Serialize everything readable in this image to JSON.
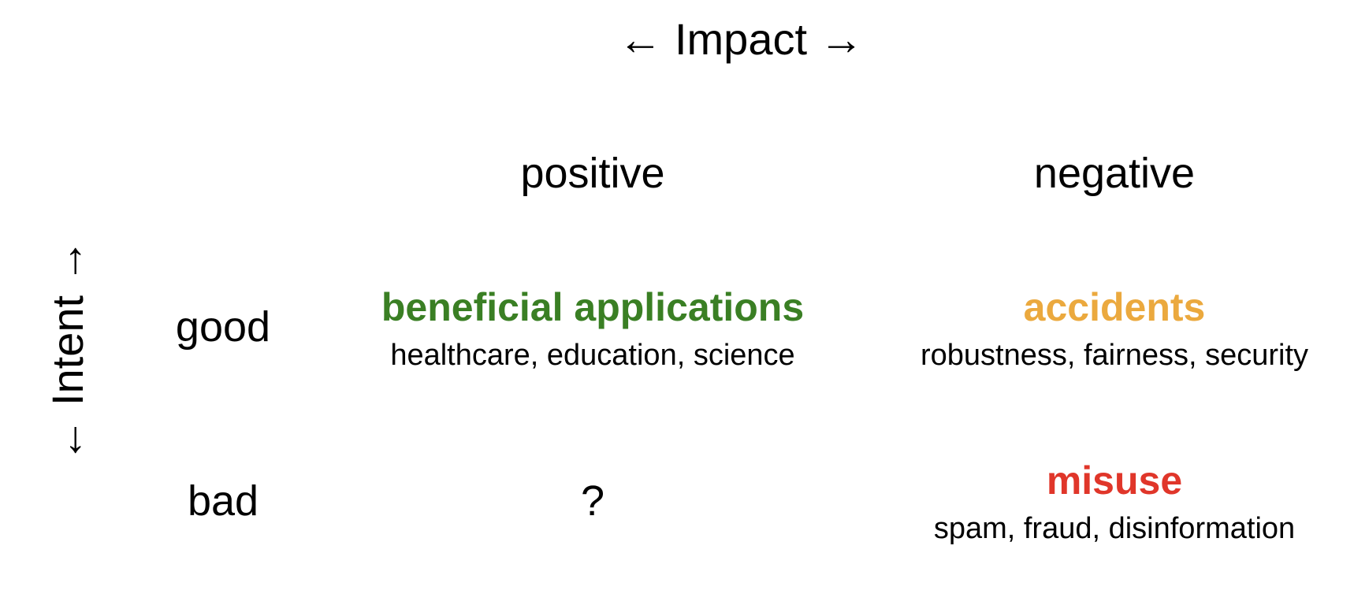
{
  "axes": {
    "horizontal": "← Impact →",
    "vertical": "← Intent →"
  },
  "columns": {
    "positive": "positive",
    "negative": "negative"
  },
  "rows": {
    "good": "good",
    "bad": "bad"
  },
  "cells": {
    "good_positive": {
      "title": "beneficial applications",
      "subtitle": "healthcare, education, science",
      "color": "#3a7f24"
    },
    "good_negative": {
      "title": "accidents",
      "subtitle": "robustness, fairness, security",
      "color": "#eba93e"
    },
    "bad_positive": {
      "title": "?"
    },
    "bad_negative": {
      "title": "misuse",
      "subtitle": "spam, fraud, disinformation",
      "color": "#e0362a"
    }
  }
}
